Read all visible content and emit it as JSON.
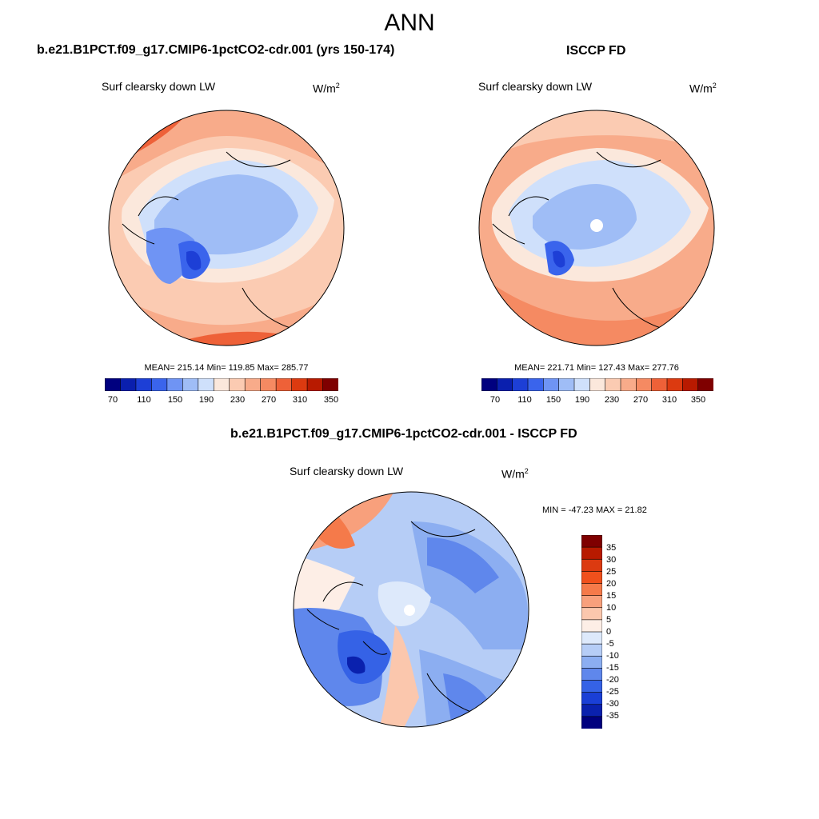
{
  "figure": {
    "season": "ANN"
  },
  "panel_left": {
    "title": "b.e21.B1PCT.f09_g17.CMIP6-1pctCO2-cdr.001 (yrs 150-174)",
    "variable": "Surf clearsky down LW",
    "units_base": "W/m",
    "units_exp": "2",
    "stats": "MEAN= 215.14  Min= 119.85  Max= 285.77"
  },
  "panel_right": {
    "title": "ISCCP FD",
    "variable": "Surf clearsky down LW",
    "units_base": "W/m",
    "units_exp": "2",
    "stats": "MEAN= 221.71  Min= 127.43  Max= 277.76"
  },
  "panel_diff": {
    "title": "b.e21.B1PCT.f09_g17.CMIP6-1pctCO2-cdr.001 - ISCCP FD",
    "variable": "Surf clearsky down LW",
    "units_base": "W/m",
    "units_exp": "2",
    "stats": "MIN = -47.23 MAX =  21.82"
  },
  "colorbar_abs": {
    "tick_labels": [
      "70",
      "110",
      "150",
      "190",
      "230",
      "270",
      "310",
      "350"
    ],
    "colors": [
      "#00007f",
      "#0a1fae",
      "#1d3fd6",
      "#3a64ec",
      "#6f94f4",
      "#9fbdf6",
      "#cfe0fb",
      "#fbe8dc",
      "#fbcbb2",
      "#f8ab8a",
      "#f58a62",
      "#ee6138",
      "#dc3a10",
      "#b81a00",
      "#7f0000"
    ]
  },
  "colorbar_diff": {
    "tick_labels": [
      "35",
      "30",
      "25",
      "20",
      "15",
      "10",
      "5",
      "0",
      "-5",
      "-10",
      "-15",
      "-20",
      "-25",
      "-30",
      "-35"
    ],
    "colors": [
      "#7f0000",
      "#b81a00",
      "#dc3a10",
      "#f0501c",
      "#f57a4a",
      "#f8a07c",
      "#fbc7ad",
      "#fdeee6",
      "#dde9fb",
      "#b6cdf6",
      "#8caef1",
      "#5f87ec",
      "#3562e6",
      "#1a3fd6",
      "#0a21ae",
      "#00007f"
    ]
  }
}
